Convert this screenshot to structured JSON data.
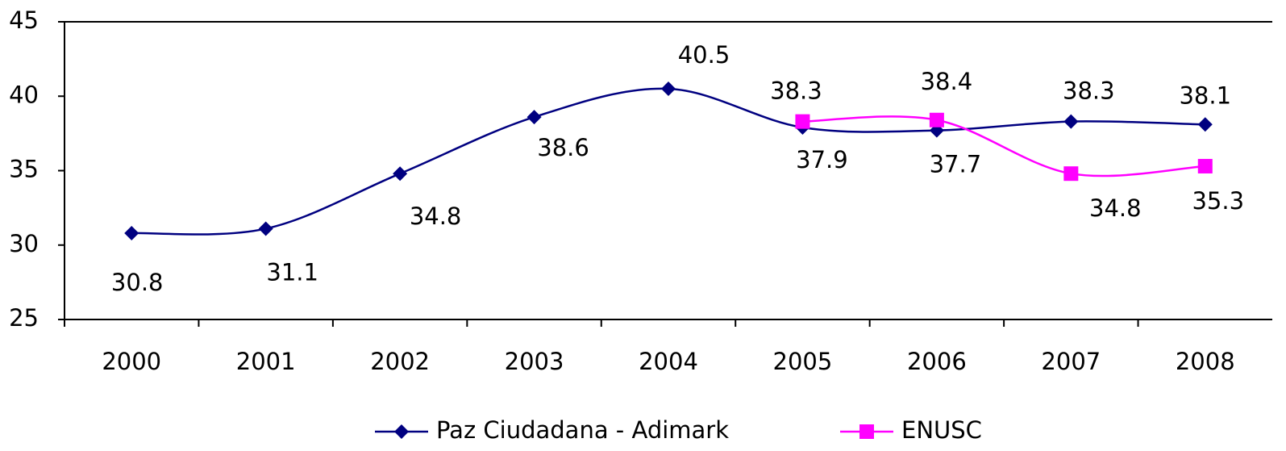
{
  "chart_data": {
    "type": "line",
    "categories": [
      "2000",
      "2001",
      "2002",
      "2003",
      "2004",
      "2005",
      "2006",
      "2007",
      "2008"
    ],
    "series": [
      {
        "name": "Paz Ciudadana - Adimark",
        "color": "#000080",
        "marker": "diamond",
        "values": [
          30.8,
          31.1,
          34.8,
          38.6,
          40.5,
          37.9,
          37.7,
          38.3,
          38.1
        ]
      },
      {
        "name": "ENUSC",
        "color": "#ff00ff",
        "marker": "square",
        "values": [
          null,
          null,
          null,
          null,
          null,
          38.3,
          38.4,
          34.8,
          35.3
        ]
      }
    ],
    "ylim": [
      25,
      45
    ],
    "yticks": [
      25,
      30,
      35,
      40,
      45
    ],
    "grid": false,
    "smooth": true,
    "legend": "bottom"
  }
}
